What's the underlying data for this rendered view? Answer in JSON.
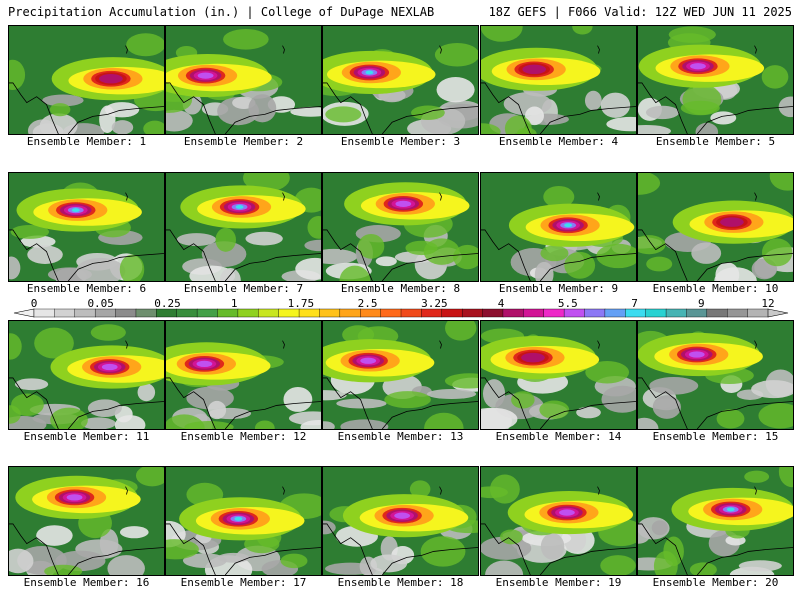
{
  "header": {
    "left": "Precipitation Accumulation (in.) | College of DuPage NEXLAB",
    "right": "18Z GEFS | F066 Valid: 12Z WED JUN 11 2025"
  },
  "members": [
    {
      "label": "Ensemble Member: 1",
      "peak_in": 4
    },
    {
      "label": "Ensemble Member: 2",
      "peak_in": 5.5
    },
    {
      "label": "Ensemble Member: 3",
      "peak_in": 7
    },
    {
      "label": "Ensemble Member: 4",
      "peak_in": 4
    },
    {
      "label": "Ensemble Member: 5",
      "peak_in": 5.5
    },
    {
      "label": "Ensemble Member: 6",
      "peak_in": 7
    },
    {
      "label": "Ensemble Member: 7",
      "peak_in": 7
    },
    {
      "label": "Ensemble Member: 8",
      "peak_in": 5.5
    },
    {
      "label": "Ensemble Member: 9",
      "peak_in": 7
    },
    {
      "label": "Ensemble Member: 10",
      "peak_in": 4
    },
    {
      "label": "Ensemble Member: 11",
      "peak_in": 5.5
    },
    {
      "label": "Ensemble Member: 12",
      "peak_in": 5.5
    },
    {
      "label": "Ensemble Member: 13",
      "peak_in": 5.5
    },
    {
      "label": "Ensemble Member: 14",
      "peak_in": 4
    },
    {
      "label": "Ensemble Member: 15",
      "peak_in": 5.5
    },
    {
      "label": "Ensemble Member: 16",
      "peak_in": 5.5
    },
    {
      "label": "Ensemble Member: 17",
      "peak_in": 7
    },
    {
      "label": "Ensemble Member: 18",
      "peak_in": 5.5
    },
    {
      "label": "Ensemble Member: 19",
      "peak_in": 5.5
    },
    {
      "label": "Ensemble Member: 20",
      "peak_in": 7
    }
  ],
  "colorbar": {
    "labels": [
      "0",
      "0.05",
      "0.25",
      "1",
      "1.75",
      "2.5",
      "3.25",
      "4",
      "5.5",
      "7",
      "9",
      "12"
    ],
    "colors": [
      "#e6e6e6",
      "#d2d2d2",
      "#bdbdbd",
      "#a6a6a6",
      "#8c8c8c",
      "#6e8f6e",
      "#2e7d32",
      "#388e3c",
      "#43a047",
      "#66bb2a",
      "#8fd11f",
      "#c8e620",
      "#f5f51e",
      "#ffe01a",
      "#ffc21a",
      "#ffa51a",
      "#ff8a1a",
      "#ff6a1a",
      "#f04a1a",
      "#e0281a",
      "#c81414",
      "#a8121e",
      "#8c0f2e",
      "#b0106a",
      "#d21496",
      "#ee28c8",
      "#c050f0",
      "#8c78f5",
      "#64a0f5",
      "#3cdcf0",
      "#28d2d2",
      "#46b4b4",
      "#5a9696",
      "#787878",
      "#969696",
      "#b4b4b4"
    ]
  }
}
